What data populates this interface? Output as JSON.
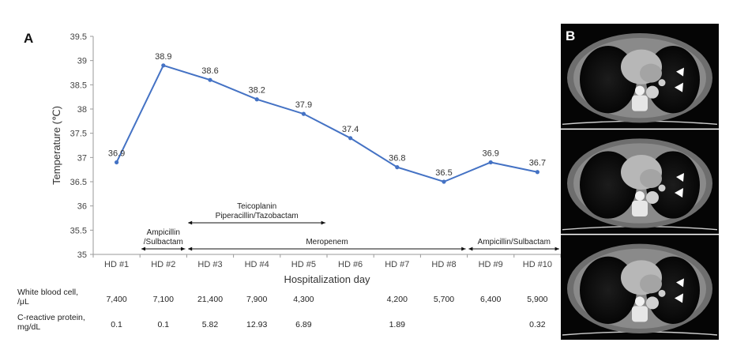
{
  "panel_a_label": "A",
  "panel_b_label": "B",
  "chart_data": {
    "type": "line",
    "xlabel": "Hospitalization day",
    "ylabel": "Temperature (℃)",
    "ylim": [
      35,
      39.5
    ],
    "yticks": [
      "35",
      "35.5",
      "36",
      "36.5",
      "37",
      "37.5",
      "38",
      "38.5",
      "39",
      "39.5"
    ],
    "categories": [
      "HD #1",
      "HD #2",
      "HD #3",
      "HD #4",
      "HD #5",
      "HD #6",
      "HD #7",
      "HD #8",
      "HD #9",
      "HD #10"
    ],
    "values": [
      36.9,
      38.9,
      38.6,
      38.2,
      37.9,
      37.4,
      36.8,
      36.5,
      36.9,
      36.7
    ],
    "data_labels": [
      "36.9",
      "38.9",
      "38.6",
      "38.2",
      "37.9",
      "37.4",
      "36.8",
      "36.5",
      "36.9",
      "36.7"
    ],
    "line_color": "#4472C4",
    "grid": false
  },
  "antibiotics": [
    {
      "lines": [
        "Ampicillin",
        "/Sulbactam"
      ],
      "from": "HD #2",
      "to": "HD #2"
    },
    {
      "lines": [
        "Teicoplanin",
        "Piperacillin/Tazobactam"
      ],
      "from": "HD #3",
      "to": "HD #5"
    },
    {
      "lines": [
        "Meropenem"
      ],
      "from": "HD #3",
      "to": "HD #8"
    },
    {
      "lines": [
        "Ampicillin/Sulbactam"
      ],
      "from": "HD #9",
      "to": "HD #10"
    }
  ],
  "labs": [
    {
      "label_lines": [
        "White blood cell,",
        "/μL"
      ],
      "values": [
        "7,400",
        "7,100",
        "21,400",
        "7,900",
        "4,300",
        "",
        "4,200",
        "5,700",
        "6,400",
        "5,900"
      ]
    },
    {
      "label_lines": [
        "C-reactive protein,",
        "mg/dL"
      ],
      "values": [
        "0.1",
        "0.1",
        "5.82",
        "12.93",
        "6.89",
        "",
        "1.89",
        "",
        "",
        "0.32"
      ]
    }
  ],
  "ct_images": [
    "CT image 1",
    "CT image 2",
    "CT image 3"
  ]
}
